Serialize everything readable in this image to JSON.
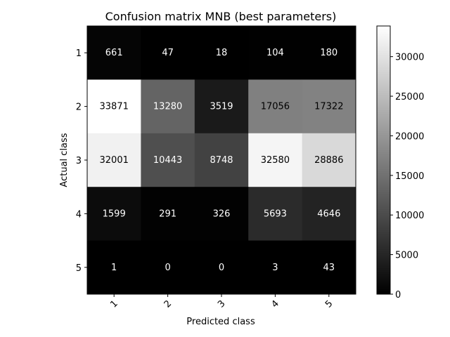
{
  "chart_data": {
    "type": "heatmap",
    "title": "Confusion matrix MNB (best parameters)",
    "xlabel": "Predicted class",
    "ylabel": "Actual class",
    "x_categories": [
      "1",
      "2",
      "3",
      "4",
      "5"
    ],
    "y_categories": [
      "1",
      "2",
      "3",
      "4",
      "5"
    ],
    "values": [
      [
        661,
        47,
        18,
        104,
        180
      ],
      [
        33871,
        13280,
        3519,
        17056,
        17322
      ],
      [
        32001,
        10443,
        8748,
        32580,
        28886
      ],
      [
        1599,
        291,
        326,
        5693,
        4646
      ],
      [
        1,
        0,
        0,
        3,
        43
      ]
    ],
    "colormap": "gray",
    "color_range": [
      0,
      33871
    ],
    "colorbar": {
      "ticks": [
        0,
        5000,
        10000,
        15000,
        20000,
        25000,
        30000
      ],
      "tick_labels": [
        "0",
        "5000",
        "10000",
        "15000",
        "20000",
        "25000",
        "30000"
      ]
    },
    "text_color_dark": "#000000",
    "text_color_light": "#ffffff",
    "x_tick_rotation": "45deg"
  }
}
